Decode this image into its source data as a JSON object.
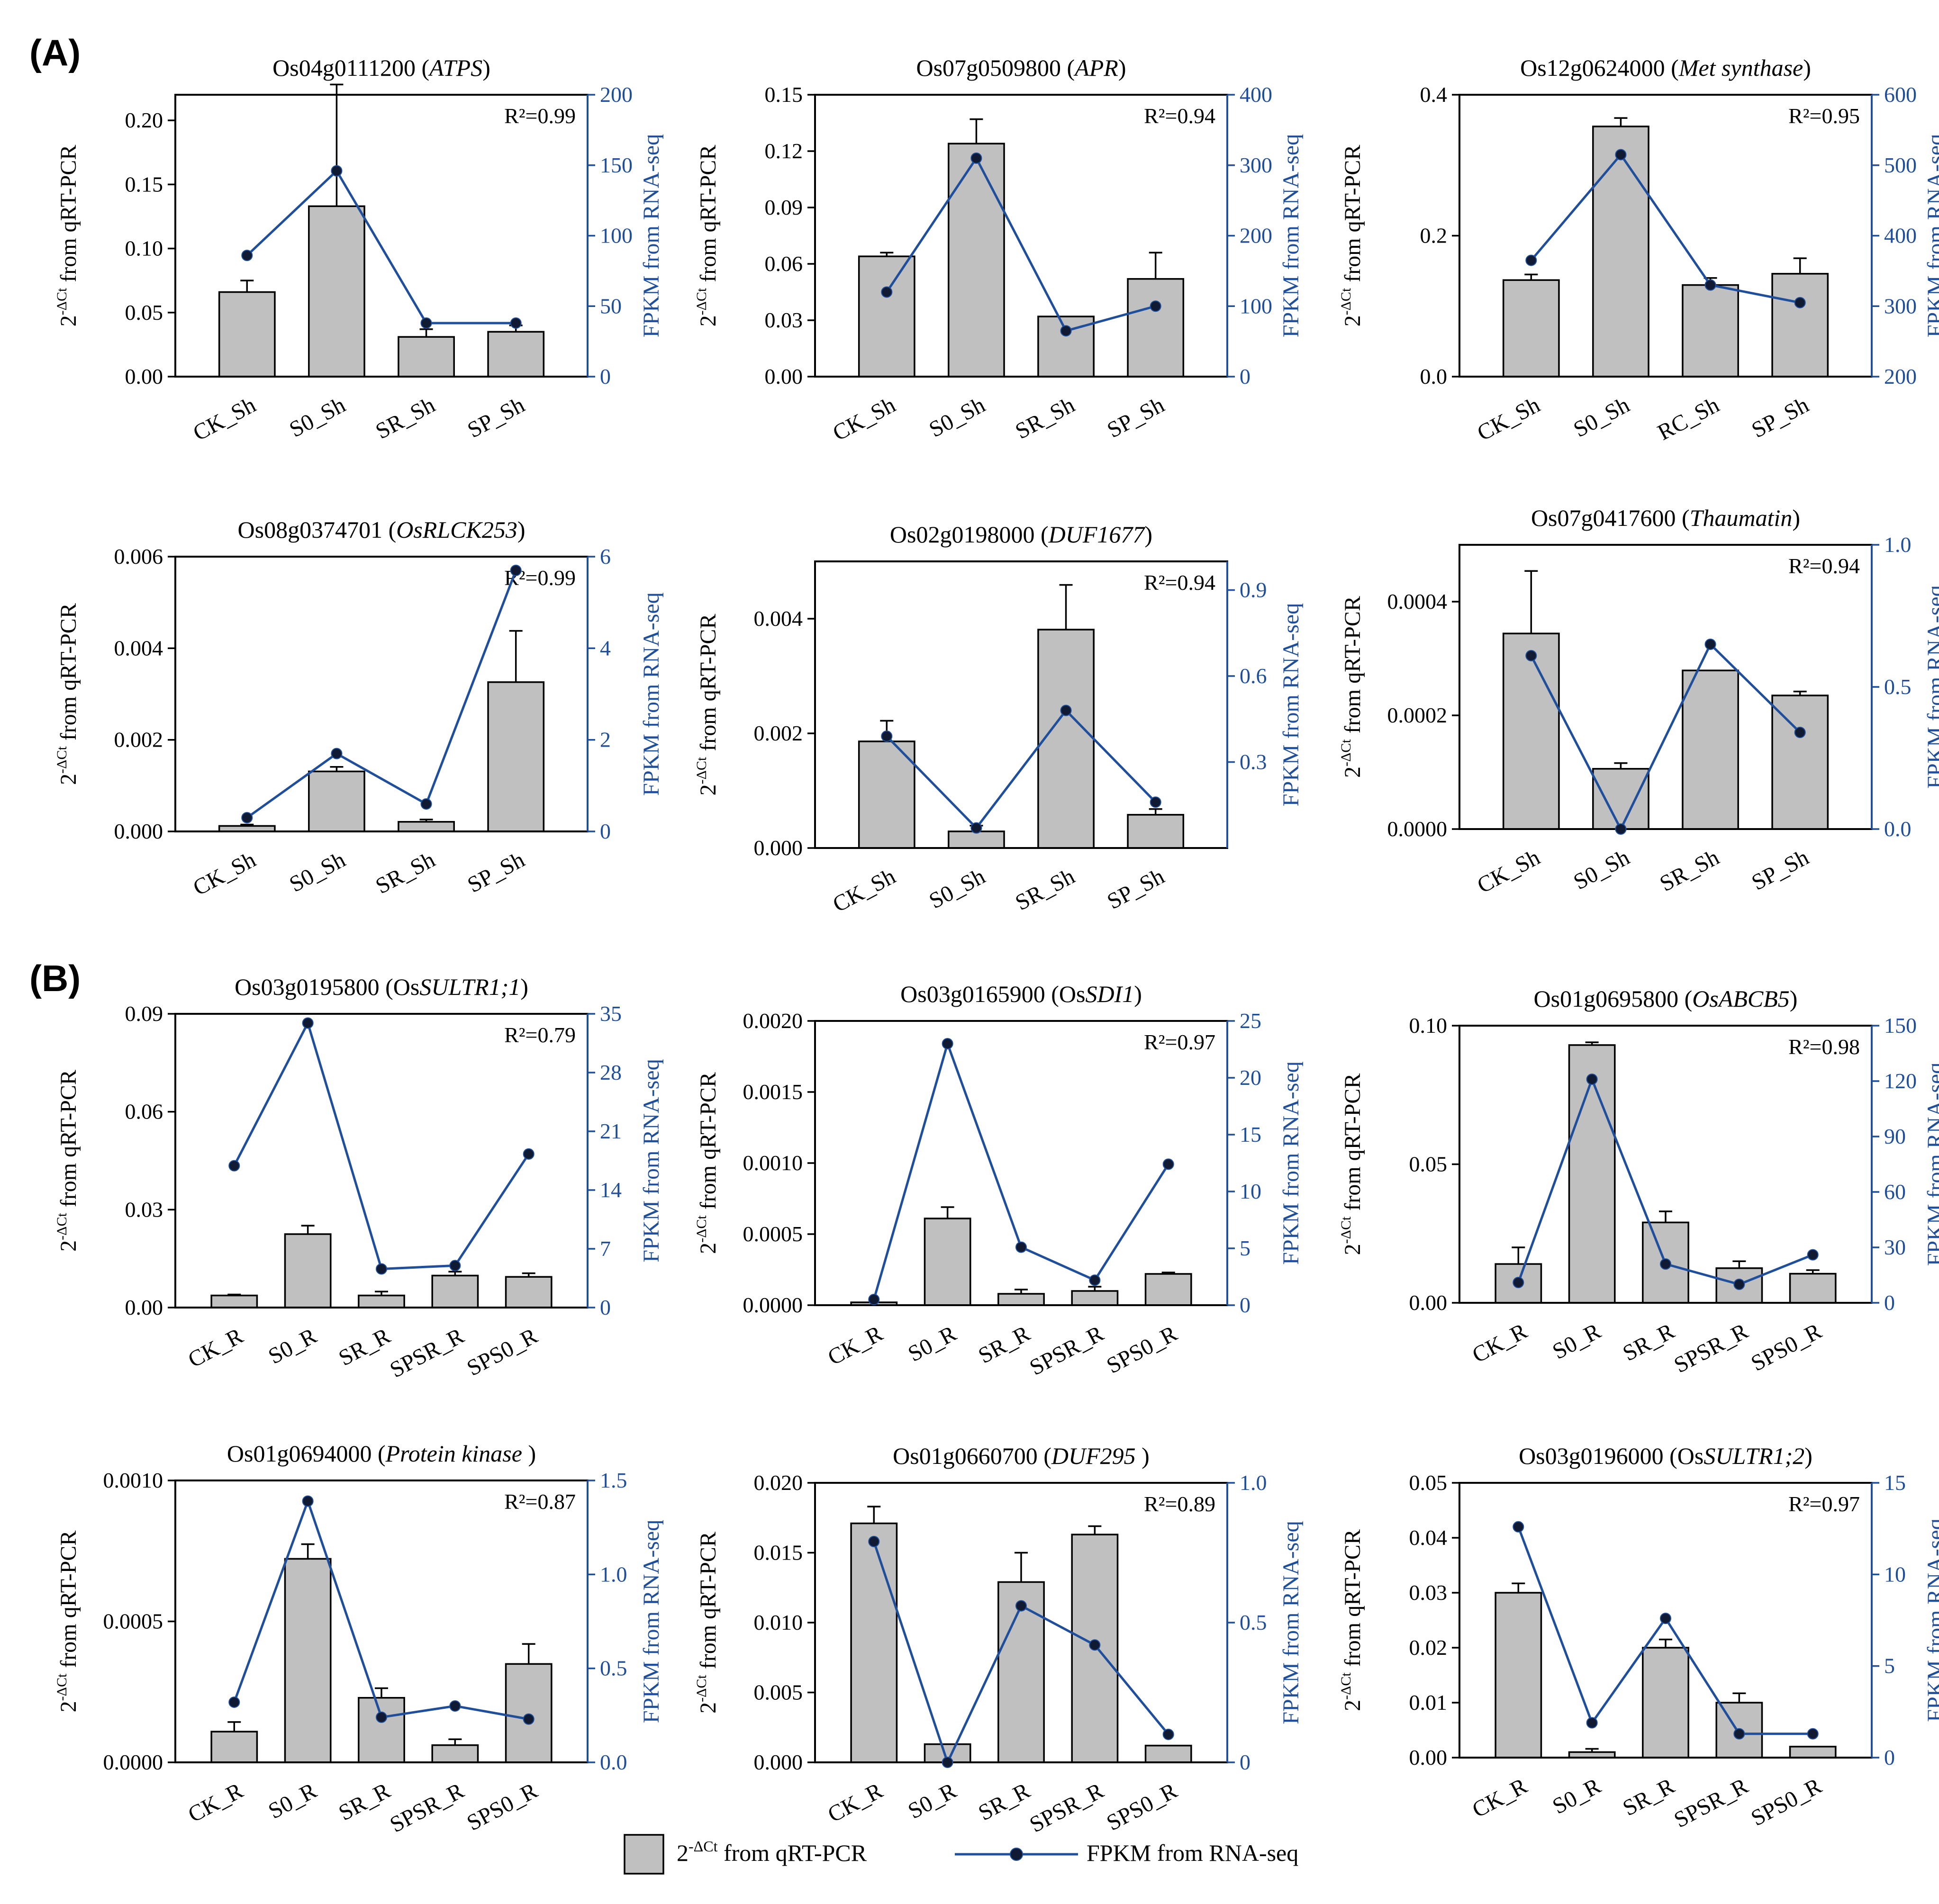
{
  "panel_labels": {
    "a": "(A)",
    "b": "(B)"
  },
  "axis_labels": {
    "left_base": "2",
    "left_exp": "-ΔCt",
    "left_rest": " from qRT-PCR",
    "right": "FPKM from RNA-seq"
  },
  "legend": {
    "bar_base": "2",
    "bar_exp": "-ΔCt",
    "bar_rest": " from qRT-PCR",
    "line_label": "FPKM from RNA-seq"
  },
  "colors": {
    "bar": "#c0c0c0",
    "line": "#1f4e9a",
    "marker": "#111a33"
  },
  "chart_data": [
    {
      "type": "bar",
      "title_id": "Os04g0111200 (",
      "title_gene": "ATPS",
      "title_close": ")",
      "r2": "R²=0.99",
      "categories": [
        "CK_Sh",
        "S0_Sh",
        "SR_Sh",
        "SP_Sh"
      ],
      "values": [
        0.066,
        0.133,
        0.031,
        0.035
      ],
      "errors": [
        0.009,
        0.095,
        0.006,
        0.005
      ],
      "line_values": [
        86,
        146,
        38,
        38
      ],
      "ylim": [
        0,
        0.22
      ],
      "yticks": [
        "0.00",
        "0.05",
        "0.10",
        "0.15",
        "0.20"
      ],
      "ytick_values": [
        0,
        0.05,
        0.1,
        0.15,
        0.2
      ],
      "y2lim": [
        0,
        200
      ],
      "y2ticks": [
        "0",
        "50",
        "100",
        "150",
        "200"
      ],
      "y2tick_values": [
        0,
        50,
        100,
        150,
        200
      ]
    },
    {
      "type": "bar",
      "title_id": "Os07g0509800 (",
      "title_gene": "APR",
      "title_close": ")",
      "r2": "R²=0.94",
      "categories": [
        "CK_Sh",
        "S0_Sh",
        "SR_Sh",
        "SP_Sh"
      ],
      "values": [
        0.064,
        0.124,
        0.032,
        0.052
      ],
      "errors": [
        0.002,
        0.013,
        0.0,
        0.014
      ],
      "line_values": [
        120,
        310,
        65,
        100
      ],
      "ylim": [
        0,
        0.15
      ],
      "yticks": [
        "0.00",
        "0.03",
        "0.06",
        "0.09",
        "0.12",
        "0.15"
      ],
      "ytick_values": [
        0,
        0.03,
        0.06,
        0.09,
        0.12,
        0.15
      ],
      "y2lim": [
        0,
        400
      ],
      "y2ticks": [
        "0",
        "100",
        "200",
        "300",
        "400"
      ],
      "y2tick_values": [
        0,
        100,
        200,
        300,
        400
      ]
    },
    {
      "type": "bar",
      "title_id": "Os12g0624000 (",
      "title_gene": "Met synthase",
      "title_close": ")",
      "r2": "R²=0.95",
      "categories": [
        "CK_Sh",
        "S0_Sh",
        "RC_Sh",
        "SP_Sh"
      ],
      "values": [
        0.137,
        0.355,
        0.13,
        0.146
      ],
      "errors": [
        0.008,
        0.012,
        0.01,
        0.022
      ],
      "line_values": [
        365,
        515,
        330,
        305
      ],
      "ylim": [
        0,
        0.4
      ],
      "yticks": [
        "0.0",
        "0.2",
        "0.4"
      ],
      "ytick_values": [
        0,
        0.2,
        0.4
      ],
      "y2lim": [
        200,
        600
      ],
      "y2ticks": [
        "200",
        "300",
        "400",
        "500",
        "600"
      ],
      "y2tick_values": [
        200,
        300,
        400,
        500,
        600
      ]
    },
    {
      "type": "bar",
      "title_id": "Os08g0374701 (",
      "title_gene": "OsRLCK253",
      "title_close": ")",
      "r2": "R²=0.99",
      "categories": [
        "CK_Sh",
        "S0_Sh",
        "SR_Sh",
        "SP_Sh"
      ],
      "values": [
        0.00012,
        0.00131,
        0.00021,
        0.00326
      ],
      "errors": [
        3e-05,
        0.0001,
        5e-05,
        0.00112
      ],
      "line_values": [
        0.3,
        1.7,
        0.6,
        5.7
      ],
      "ylim": [
        0,
        0.006
      ],
      "yticks": [
        "0.000",
        "0.002",
        "0.004",
        "0.006"
      ],
      "ytick_values": [
        0,
        0.002,
        0.004,
        0.006
      ],
      "y2lim": [
        0,
        6
      ],
      "y2ticks": [
        "0",
        "2",
        "4",
        "6"
      ],
      "y2tick_values": [
        0,
        2,
        4,
        6
      ]
    },
    {
      "type": "bar",
      "title_id": "Os02g0198000 (",
      "title_gene": "DUF1677",
      "title_close": ")",
      "r2": "R²=0.94",
      "categories": [
        "CK_Sh",
        "S0_Sh",
        "SR_Sh",
        "SP_Sh"
      ],
      "values": [
        0.00186,
        0.00029,
        0.00381,
        0.00058
      ],
      "errors": [
        0.00036,
        0.0001,
        0.00078,
        0.0001
      ],
      "line_values": [
        0.39,
        0.07,
        0.48,
        0.16
      ],
      "ylim": [
        0,
        0.005
      ],
      "yticks": [
        "0.000",
        "0.002",
        "0.004"
      ],
      "ytick_values": [
        0,
        0.002,
        0.004
      ],
      "y2lim": [
        0,
        1.0
      ],
      "y2ticks": [
        "0.3",
        "0.6",
        "0.9"
      ],
      "y2tick_values": [
        0.3,
        0.6,
        0.9
      ]
    },
    {
      "type": "bar",
      "title_id": "Os07g0417600 (",
      "title_gene": "Thaumatin",
      "title_close": ")",
      "r2": "R²=0.94",
      "categories": [
        "CK_Sh",
        "S0_Sh",
        "SR_Sh",
        "SP_Sh"
      ],
      "values": [
        0.000344,
        0.000106,
        0.000279,
        0.000235
      ],
      "errors": [
        0.00011,
        1e-05,
        0.0,
        7e-06
      ],
      "line_values": [
        0.61,
        0.0,
        0.65,
        0.34
      ],
      "ylim": [
        0,
        0.0005
      ],
      "yticks": [
        "0.0000",
        "0.0002",
        "0.0004"
      ],
      "ytick_values": [
        0,
        0.0002,
        0.0004
      ],
      "y2lim": [
        0,
        1.0
      ],
      "y2ticks": [
        "0.0",
        "0.5",
        "1.0"
      ],
      "y2tick_values": [
        0,
        0.5,
        1.0
      ]
    },
    {
      "type": "bar",
      "title_id": "Os03g0195800 (Os",
      "title_gene": "SULTR1;1",
      "title_close": ")",
      "r2": "R²=0.79",
      "categories": [
        "CK_R",
        "S0_R",
        "SR_R",
        "SPSR_R",
        "SPS0_R"
      ],
      "values": [
        0.0037,
        0.0225,
        0.0037,
        0.0098,
        0.0094
      ],
      "errors": [
        0.0003,
        0.0026,
        0.0012,
        0.0012,
        0.0011
      ],
      "line_values": [
        16.9,
        33.9,
        4.6,
        5.0,
        18.3
      ],
      "ylim": [
        0,
        0.09
      ],
      "yticks": [
        "0.00",
        "0.03",
        "0.06",
        "0.09"
      ],
      "ytick_values": [
        0,
        0.03,
        0.06,
        0.09
      ],
      "y2lim": [
        0,
        35
      ],
      "y2ticks": [
        "0",
        "7",
        "14",
        "21",
        "28",
        "35"
      ],
      "y2tick_values": [
        0,
        7,
        14,
        21,
        28,
        35
      ]
    },
    {
      "type": "bar",
      "title_id": "Os03g0165900 (Os",
      "title_gene": "SDI1",
      "title_close": ")",
      "r2": "R²=0.97",
      "categories": [
        "CK_R",
        "S0_R",
        "SR_R",
        "SPSR_R",
        "SPS0_R"
      ],
      "values": [
        2e-05,
        0.00061,
        8e-05,
        0.0001,
        0.00022
      ],
      "errors": [
        0.0,
        8e-05,
        3e-05,
        3e-05,
        1e-05
      ],
      "line_values": [
        0.5,
        23.0,
        5.1,
        2.2,
        12.4
      ],
      "ylim": [
        0,
        0.002
      ],
      "yticks": [
        "0.0000",
        "0.0005",
        "0.0010",
        "0.0015",
        "0.0020"
      ],
      "ytick_values": [
        0,
        0.0005,
        0.001,
        0.0015,
        0.002
      ],
      "y2lim": [
        0,
        25
      ],
      "y2ticks": [
        "0",
        "5",
        "10",
        "15",
        "20",
        "25"
      ],
      "y2tick_values": [
        0,
        5,
        10,
        15,
        20,
        25
      ]
    },
    {
      "type": "bar",
      "title_id": "Os01g0695800 (",
      "title_gene": "OsABCB5",
      "title_close": ")",
      "r2": "R²=0.98",
      "categories": [
        "CK_R",
        "S0_R",
        "SR_R",
        "SPSR_R",
        "SPS0_R"
      ],
      "values": [
        0.014,
        0.093,
        0.029,
        0.0125,
        0.0105
      ],
      "errors": [
        0.006,
        0.001,
        0.004,
        0.0025,
        0.0013
      ],
      "line_values": [
        11,
        121,
        21,
        10,
        26
      ],
      "ylim": [
        0,
        0.1
      ],
      "yticks": [
        "0.00",
        "0.05",
        "0.10"
      ],
      "ytick_values": [
        0,
        0.05,
        0.1
      ],
      "y2lim": [
        0,
        150
      ],
      "y2ticks": [
        "0",
        "30",
        "60",
        "90",
        "120",
        "150"
      ],
      "y2tick_values": [
        0,
        30,
        60,
        90,
        120,
        150
      ]
    },
    {
      "type": "bar",
      "title_id": "Os01g0694000 (",
      "title_gene": "Protein kinase",
      "title_close": " )",
      "r2": "R²=0.87",
      "categories": [
        "CK_R",
        "S0_R",
        "SR_R",
        "SPSR_R",
        "SPS0_R"
      ],
      "values": [
        0.000109,
        0.000722,
        0.000229,
        6.1e-05,
        0.000349
      ],
      "errors": [
        3.4e-05,
        5.2e-05,
        3.4e-05,
        2.1e-05,
        7.1e-05
      ],
      "line_values": [
        0.32,
        1.39,
        0.24,
        0.3,
        0.23
      ],
      "ylim": [
        0,
        0.001
      ],
      "yticks": [
        "0.0000",
        "0.0005",
        "0.0010"
      ],
      "ytick_values": [
        0,
        0.0005,
        0.001
      ],
      "y2lim": [
        0,
        1.5
      ],
      "y2ticks": [
        "0.0",
        "0.5",
        "1.0",
        "1.5"
      ],
      "y2tick_values": [
        0,
        0.5,
        1.0,
        1.5
      ]
    },
    {
      "type": "bar",
      "title_id": "Os01g0660700 (",
      "title_gene": "DUF295",
      "title_close": " )",
      "r2": "R²=0.89",
      "categories": [
        "CK_R",
        "S0_R",
        "SR_R",
        "SPSR_R",
        "SPS0_R"
      ],
      "values": [
        0.0171,
        0.0013,
        0.0129,
        0.0163,
        0.0012
      ],
      "errors": [
        0.0012,
        0.0,
        0.0021,
        0.0006,
        0.0
      ],
      "line_values": [
        0.79,
        0.0,
        0.56,
        0.42,
        0.1
      ],
      "ylim": [
        0,
        0.02
      ],
      "yticks": [
        "0.000",
        "0.005",
        "0.010",
        "0.015",
        "0.020"
      ],
      "ytick_values": [
        0,
        0.005,
        0.01,
        0.015,
        0.02
      ],
      "y2lim": [
        0,
        1.0
      ],
      "y2ticks": [
        "0",
        "0.5",
        "1.0"
      ],
      "y2tick_values": [
        0,
        0.5,
        1.0
      ]
    },
    {
      "type": "bar",
      "title_id": "Os03g0196000 (Os",
      "title_gene": "SULTR1;2",
      "title_close": ")",
      "r2": "R²=0.97",
      "categories": [
        "CK_R",
        "S0_R",
        "SR_R",
        "SPSR_R",
        "SPS0_R"
      ],
      "values": [
        0.03,
        0.001,
        0.02,
        0.01,
        0.002
      ],
      "errors": [
        0.0017,
        0.0006,
        0.0015,
        0.0017,
        0.0
      ],
      "line_values": [
        12.6,
        1.9,
        7.6,
        1.3,
        1.3
      ],
      "ylim": [
        0,
        0.05
      ],
      "yticks": [
        "0.00",
        "0.01",
        "0.02",
        "0.03",
        "0.04",
        "0.05"
      ],
      "ytick_values": [
        0,
        0.01,
        0.02,
        0.03,
        0.04,
        0.05
      ],
      "y2lim": [
        0,
        15
      ],
      "y2ticks": [
        "0",
        "5",
        "10",
        "15"
      ],
      "y2tick_values": [
        0,
        5,
        10,
        15
      ]
    }
  ]
}
